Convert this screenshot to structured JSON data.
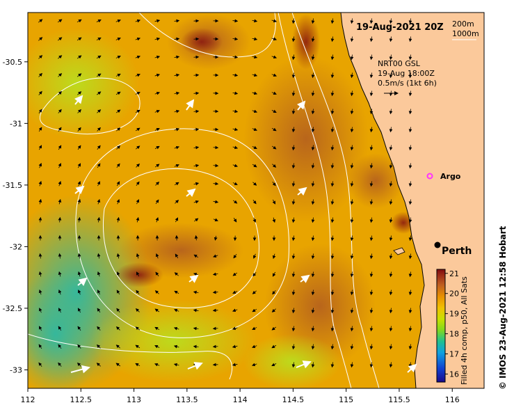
{
  "map": {
    "title": "19-Aug-2021 20Z",
    "legend_depths": [
      "200m",
      "1000m"
    ],
    "product_info": [
      "NRT00 GSL",
      "19-Aug 18:00Z",
      "0.5m/s (1kt 6h)"
    ],
    "lon_range": [
      112,
      116.3
    ],
    "lat_range": [
      -33.15,
      -30.1
    ],
    "x_ticks": [
      "112",
      "112.5",
      "113",
      "113.5",
      "114",
      "114.5",
      "115",
      "115.5",
      "116"
    ],
    "y_ticks": [
      "-30.5",
      "-31",
      "-31.5",
      "-32",
      "-32.5",
      "-33"
    ],
    "argo_label": "Argo",
    "city_label": "Perth",
    "credit": "© IMOS 23-Aug-2021 12:58 Hobart",
    "colors": {
      "land": "#fbc99b",
      "sst_low": "#0a6fd8",
      "sst_mid": "#8fd800",
      "sst_high": "#e8a000",
      "sst_top": "#8a1010",
      "argo": "#ff33ff"
    }
  },
  "colorbar": {
    "ticks": [
      "21",
      "20",
      "19",
      "18",
      "17",
      "16"
    ],
    "range": [
      15.6,
      21.2
    ],
    "label": "Filled 4h comp, p50, All Sats"
  }
}
